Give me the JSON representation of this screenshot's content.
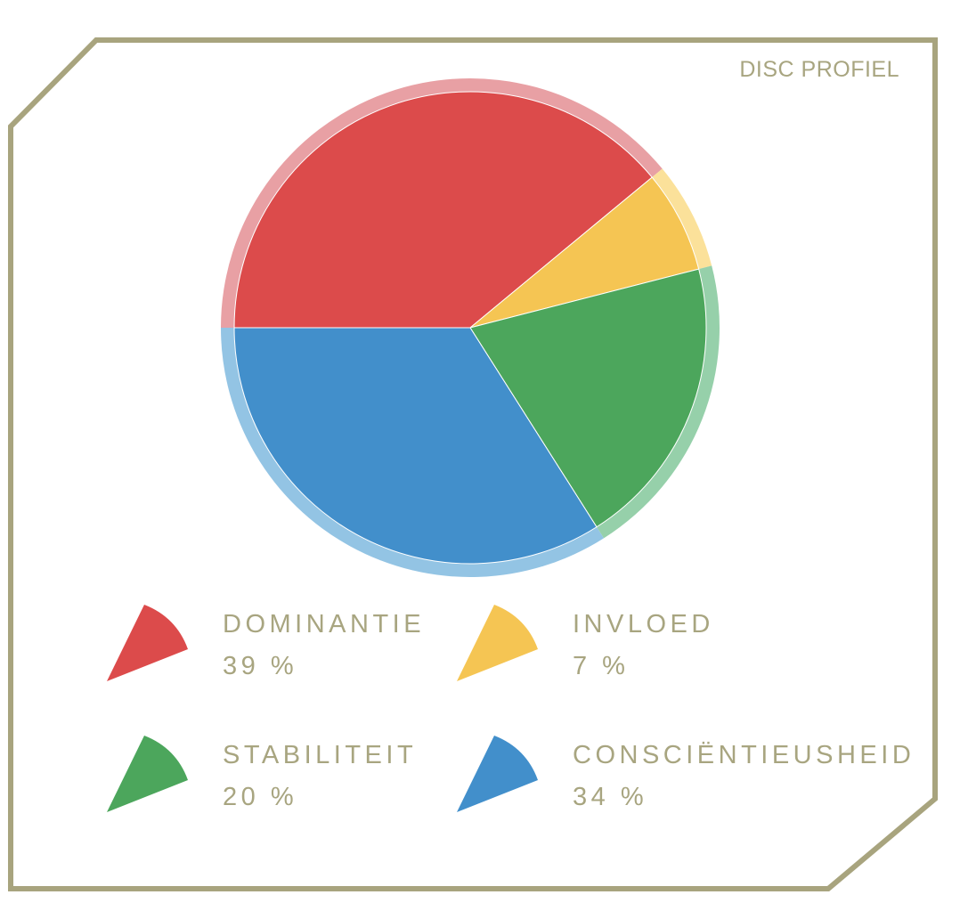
{
  "title": "DISC PROFIEL",
  "colors": {
    "frame": "#a8a47e",
    "text": "#a8a580"
  },
  "chart_data": {
    "type": "pie",
    "title": "DISC PROFIEL",
    "legend_position": "bottom",
    "slices": [
      {
        "label": "DOMINANTIE",
        "value": 39,
        "value_label": "39 %",
        "color": "#dc4b4b",
        "ring_color": "#e8a0a4"
      },
      {
        "label": "INVLOED",
        "value": 7,
        "value_label": "7 %",
        "color": "#f5c553",
        "ring_color": "#fbe19a"
      },
      {
        "label": "STABILITEIT",
        "value": 20,
        "value_label": "20 %",
        "color": "#4ca65c",
        "ring_color": "#96d0aa"
      },
      {
        "label": "CONSCIËNTIEUSHEID",
        "value": 34,
        "value_label": "34 %",
        "color": "#428fcb",
        "ring_color": "#93c4e4"
      }
    ]
  }
}
